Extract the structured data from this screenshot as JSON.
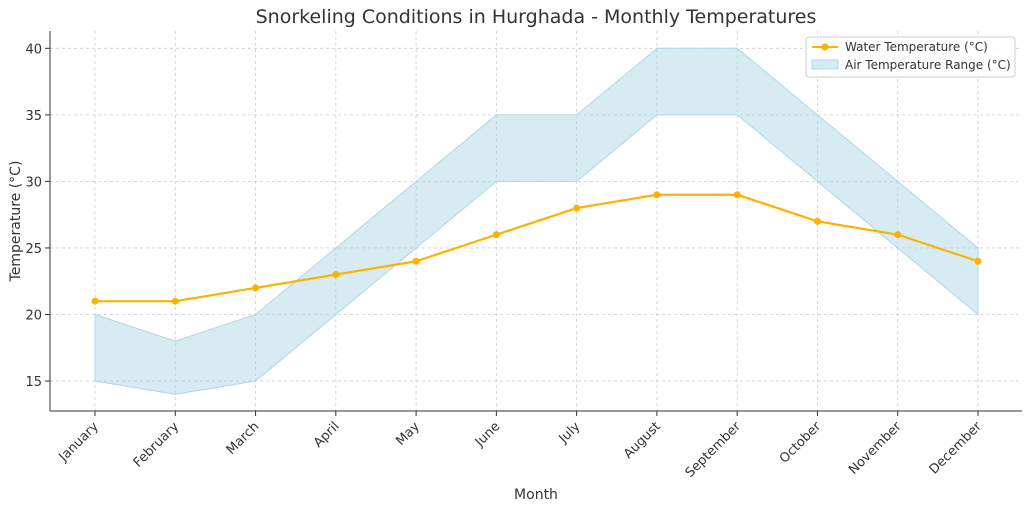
{
  "chart_data": {
    "type": "line",
    "title": "Snorkeling Conditions in Hurghada - Monthly Temperatures",
    "xlabel": "Month",
    "ylabel": "Temperature (°C)",
    "categories": [
      "January",
      "February",
      "March",
      "April",
      "May",
      "June",
      "July",
      "August",
      "September",
      "October",
      "November",
      "December"
    ],
    "ylim": [
      12.75,
      41.3
    ],
    "yticks": [
      15,
      20,
      25,
      30,
      35,
      40
    ],
    "grid": true,
    "legend_placement": "top-right",
    "series": [
      {
        "name": "Water Temperature (°C)",
        "kind": "line",
        "color": "#ffb000",
        "values": [
          21,
          21,
          22,
          23,
          24,
          26,
          28,
          29,
          29,
          27,
          26,
          24
        ]
      },
      {
        "name": "Air Temperature Range (°C)",
        "kind": "band",
        "color": "#add8e6",
        "low": [
          15,
          14,
          15,
          20,
          25,
          30,
          30,
          35,
          35,
          30,
          25,
          20
        ],
        "high": [
          20,
          18,
          20,
          25,
          30,
          35,
          35,
          40,
          40,
          35,
          30,
          25
        ]
      }
    ]
  }
}
